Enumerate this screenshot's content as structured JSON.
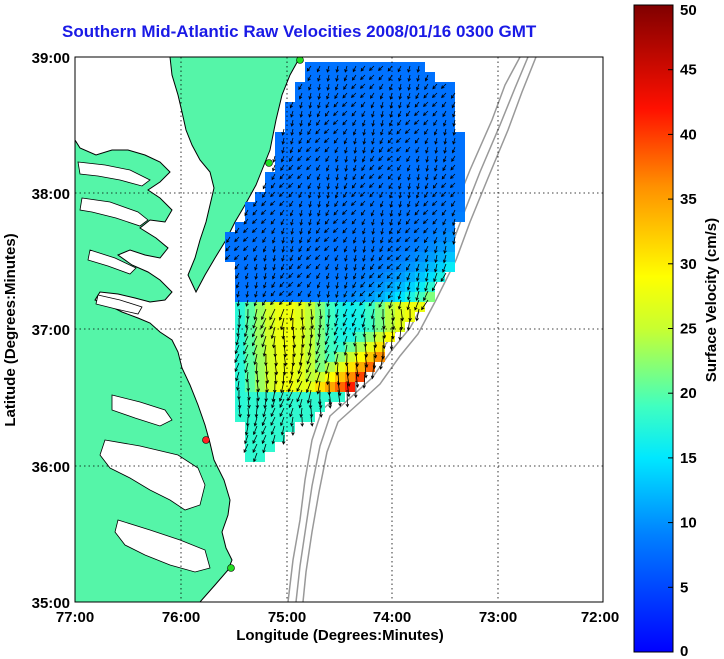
{
  "title": "Southern Mid-Atlantic Raw Velocities 2008/01/16 0300 GMT",
  "x_axis": {
    "label": "Longitude (Degrees:Minutes)",
    "ticks": [
      "77:00",
      "76:00",
      "75:00",
      "74:00",
      "73:00",
      "72:00"
    ]
  },
  "y_axis": {
    "label": "Latitude (Degrees:Minutes)",
    "ticks": [
      "39:00",
      "38:00",
      "37:00",
      "36:00",
      "35:00"
    ]
  },
  "colorbar": {
    "label": "Surface Velocity (cm/s)",
    "ticks": [
      "0",
      "5",
      "10",
      "15",
      "20",
      "25",
      "30",
      "35",
      "40",
      "45",
      "50"
    ],
    "min": 0,
    "max": 50
  },
  "colors": {
    "land": "#55f5a8",
    "ocean": "#ffffff",
    "bathymetry": "#999999",
    "coastline": "#000000",
    "station": "#22dd22",
    "station_highlight": "#ff2222"
  },
  "map": {
    "lon_range": [
      -77,
      -72
    ],
    "lat_range": [
      35,
      39
    ],
    "grid": "dotted"
  }
}
